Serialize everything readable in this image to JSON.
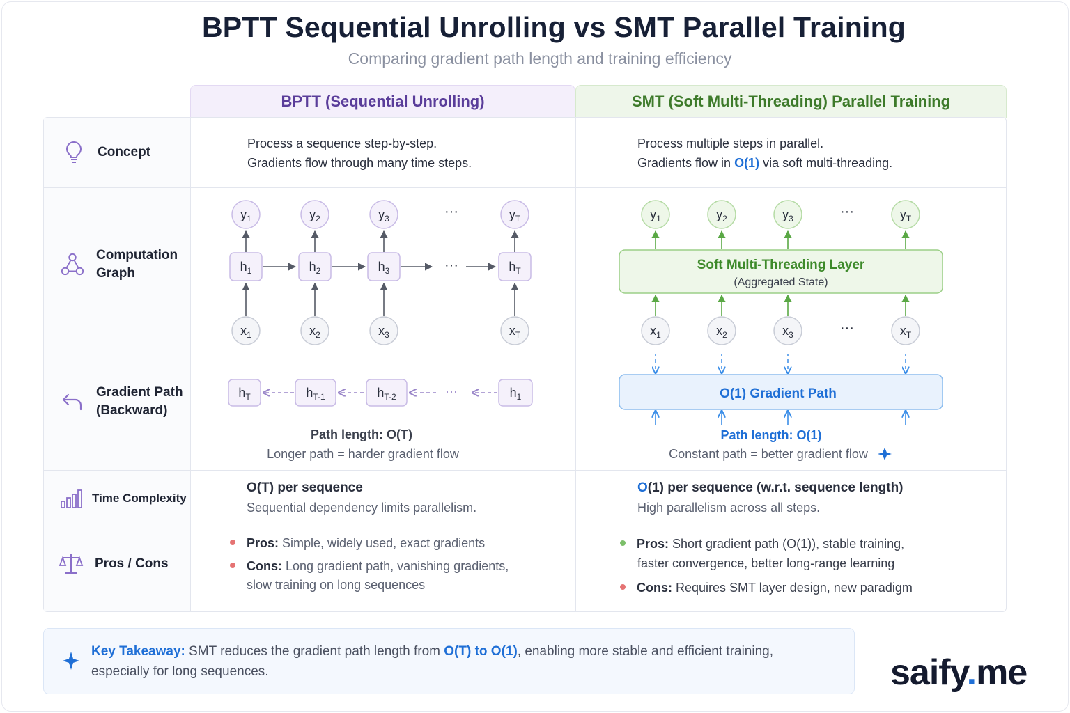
{
  "title": "BPTT Sequential Unrolling vs SMT Parallel Training",
  "subtitle": "Comparing gradient path length and training efficiency",
  "columns": {
    "bptt": "BPTT (Sequential Unrolling)",
    "smt": "SMT (Soft Multi-Threading) Parallel Training"
  },
  "rows": {
    "concept": {
      "label": "Concept",
      "icon": "lightbulb-icon",
      "bptt": [
        "Process a sequence step-by-step.",
        "Gradients flow through many time steps."
      ],
      "smt_line1": "Process multiple steps in parallel.",
      "smt_line2_pre": "Gradients flow in ",
      "smt_line2_hl": "O(1)",
      "smt_line2_post": " via soft multi-threading."
    },
    "graph": {
      "label": "Computation\nGraph",
      "icon": "graph-nodes-icon",
      "bptt_y": [
        "y",
        "y",
        "y",
        "y"
      ],
      "bptt_y_sub": [
        "1",
        "2",
        "3",
        "T"
      ],
      "bptt_h": [
        "h",
        "h",
        "h",
        "h"
      ],
      "bptt_h_sub": [
        "1",
        "2",
        "3",
        "T"
      ],
      "bptt_x": [
        "x",
        "x",
        "x",
        "x"
      ],
      "bptt_x_sub": [
        "1",
        "2",
        "3",
        "T"
      ],
      "ellipsis": "···",
      "smt_layer_title": "Soft Multi-Threading Layer",
      "smt_layer_sub": "(Aggregated State)"
    },
    "gradient": {
      "label": "Gradient Path\n(Backward)",
      "icon": "undo-arrow-icon",
      "bptt_nodes": [
        "h",
        "h",
        "h",
        "h"
      ],
      "bptt_nodes_sub": [
        "T",
        "T-1",
        "T-2",
        "1"
      ],
      "bptt_path_length": "Path length: O(T)",
      "bptt_note": "Longer path = harder gradient flow",
      "smt_box": "O(1) Gradient Path",
      "smt_path_length": "Path length: O(1)",
      "smt_note": "Constant path = better gradient flow"
    },
    "time": {
      "label": "Time Complexity",
      "icon": "bar-chart-icon",
      "bptt_main": "O(T) per sequence",
      "bptt_sub": "Sequential dependency limits parallelism.",
      "smt_main_hl": "O",
      "smt_main": "(1) per sequence (w.r.t. sequence length)",
      "smt_sub": "High parallelism across all steps."
    },
    "proscons": {
      "label": "Pros / Cons",
      "icon": "balance-scale-icon",
      "bptt_pros_label": "Pros:",
      "bptt_pros": " Simple, widely used, exact gradients",
      "bptt_cons_label": "Cons:",
      "bptt_cons1": " Long gradient path, vanishing gradients,",
      "bptt_cons2": "slow training on long sequences",
      "smt_pros_label": "Pros:",
      "smt_pros1": " Short gradient path (O(1)), stable training,",
      "smt_pros2": "faster convergence, better long-range learning",
      "smt_cons_label": "Cons:",
      "smt_cons": " Requires SMT layer design, new paradigm"
    }
  },
  "takeaway": {
    "label": "Key Takeaway:",
    "pre": " SMT reduces the gradient path length from ",
    "hl": "O(T) to O(1)",
    "post": ", enabling more stable and efficient training,",
    "line2": "especially for long sequences."
  },
  "logo": {
    "name": "saify",
    "dot": ".",
    "tld": "me"
  },
  "colors": {
    "purple": "#8a6fc9",
    "green": "#5aa845",
    "blue": "#3b8ee8",
    "red_dot": "#e57373",
    "green_dot": "#7cbf6a"
  }
}
